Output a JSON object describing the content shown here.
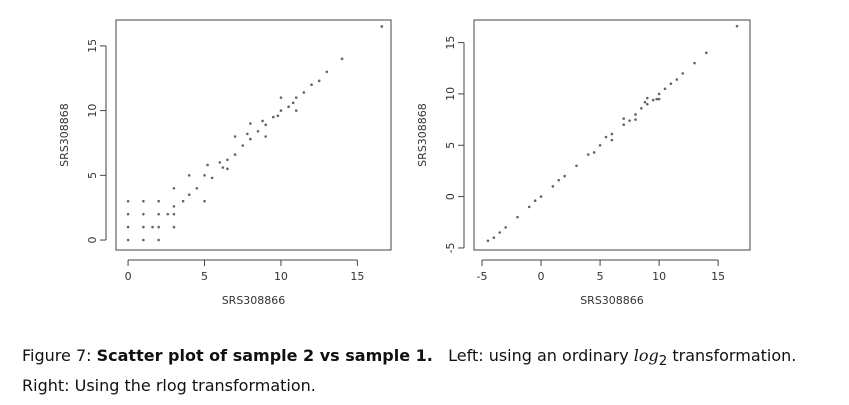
{
  "chart_data": [
    {
      "type": "scatter",
      "xlabel": "SRS308866",
      "ylabel": "SRS308868",
      "color": "#222222",
      "xlim": [
        -0.79,
        17.2
      ],
      "ylim": [
        -0.77,
        17.0
      ],
      "xticks": [
        0,
        5,
        10,
        15
      ],
      "yticks": [
        0,
        5,
        10,
        15
      ],
      "x": [
        0,
        1,
        2,
        0,
        1,
        2,
        3,
        0,
        1,
        2,
        3,
        0,
        1,
        2,
        3,
        1.6,
        2.6,
        3.6,
        4,
        4.5,
        5,
        5.5,
        6,
        6.5,
        7,
        7.5,
        8,
        8.5,
        9,
        9.5,
        10,
        10.5,
        11,
        11.5,
        12,
        12.5,
        13,
        14,
        16.6,
        6.5,
        7,
        8,
        9,
        10,
        11,
        5,
        4,
        3,
        7.8,
        8.8,
        9.8,
        10.8,
        6.2,
        5.2
      ],
      "y": [
        0,
        0,
        0,
        1,
        1,
        1,
        1,
        2,
        2,
        2,
        2,
        3,
        3,
        3,
        2.6,
        1,
        2,
        3,
        3.5,
        4,
        5,
        4.8,
        6,
        6.2,
        6.6,
        7.3,
        7.8,
        8.4,
        8.9,
        9.5,
        10,
        10.3,
        11,
        11.4,
        12,
        12.3,
        13,
        14,
        16.5,
        5.5,
        8,
        9,
        8,
        11,
        10,
        3,
        5,
        4,
        8.2,
        9.2,
        9.6,
        10.6,
        5.6,
        5.8
      ]
    },
    {
      "type": "scatter",
      "xlabel": "SRS308866",
      "ylabel": "SRS308868",
      "color": "#222222",
      "xlim": [
        -5.68,
        17.7
      ],
      "ylim": [
        -5.2,
        17.2
      ],
      "xticks": [
        -5,
        0,
        5,
        10,
        15
      ],
      "yticks": [
        -5,
        0,
        5,
        10,
        15
      ],
      "x": [
        -4.5,
        -4,
        -3,
        -2,
        -1,
        0,
        1,
        2,
        3,
        4,
        5,
        6,
        7,
        7.5,
        8,
        8.5,
        9,
        9.5,
        10,
        10.5,
        11,
        11.5,
        12,
        13,
        14,
        16.6,
        6,
        7,
        8,
        9,
        10,
        -3.5,
        -0.5,
        1.5,
        4.5,
        5.5,
        8.8,
        9.8
      ],
      "y": [
        -4.3,
        -4,
        -3,
        -2,
        -1,
        0,
        1,
        2,
        3,
        4.1,
        5,
        6.1,
        7,
        7.4,
        8,
        8.6,
        9,
        9.4,
        10,
        10.5,
        11,
        11.4,
        12,
        13,
        14,
        16.6,
        5.5,
        7.6,
        7.5,
        9.6,
        9.5,
        -3.5,
        -0.4,
        1.6,
        4.3,
        5.8,
        9.2,
        9.5
      ]
    }
  ],
  "caption": {
    "label": "Figure 7:",
    "bold": "Scatter plot of sample 2 vs sample 1.",
    "left": "Left:  using an ordinary",
    "math": "log",
    "sub": "2",
    "left_end": "transformation.",
    "right": "Right:  Using the rlog transformation."
  }
}
